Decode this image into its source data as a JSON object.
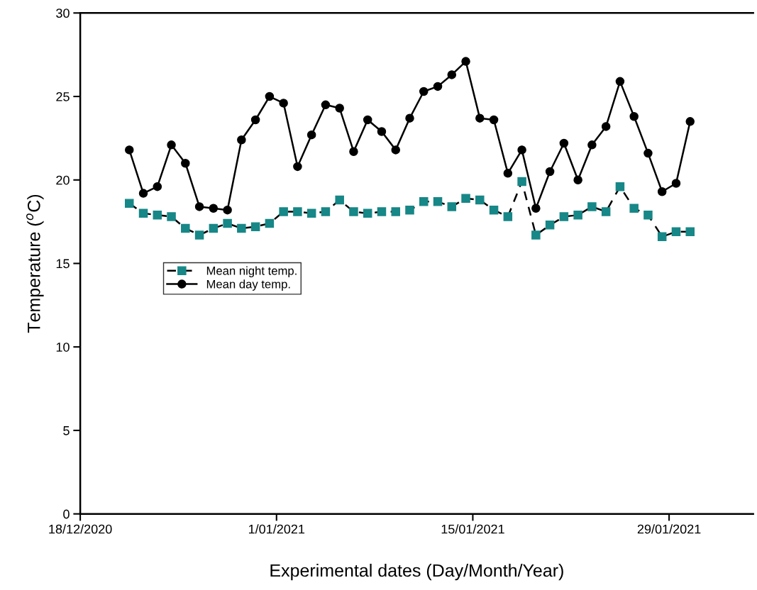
{
  "chart_data": {
    "type": "line",
    "xlabel": "Experimental dates (Day/Month/Year)",
    "ylabel": "Temperature ($^{o}$C)",
    "x": [
      "2020-12-21T12:00",
      "2020-12-22T12:00",
      "2020-12-23T12:00",
      "2020-12-24T12:00",
      "2020-12-25T12:00",
      "2020-12-26T12:00",
      "2020-12-27T12:00",
      "2020-12-28T12:00",
      "2020-12-29T12:00",
      "2020-12-30T12:00",
      "2020-12-31T12:00",
      "2021-01-01T12:00",
      "2021-01-02T12:00",
      "2021-01-03T12:00",
      "2021-01-04T12:00",
      "2021-01-05T12:00",
      "2021-01-06T12:00",
      "2021-01-07T12:00",
      "2021-01-08T12:00",
      "2021-01-09T12:00",
      "2021-01-10T12:00",
      "2021-01-11T12:00",
      "2021-01-12T12:00",
      "2021-01-13T12:00",
      "2021-01-14T12:00",
      "2021-01-15T12:00",
      "2021-01-16T12:00",
      "2021-01-17T12:00",
      "2021-01-18T12:00",
      "2021-01-19T12:00",
      "2021-01-20T12:00",
      "2021-01-21T12:00",
      "2021-01-22T12:00",
      "2021-01-23T12:00",
      "2021-01-24T12:00",
      "2021-01-25T12:00",
      "2021-01-26T12:00",
      "2021-01-27T12:00",
      "2021-01-28T12:00",
      "2021-01-29T12:00",
      "2021-01-30T12:00"
    ],
    "series": [
      {
        "name": "Mean night temp.",
        "color": "#178787",
        "marker": "square",
        "line_style": "dashed",
        "values": [
          18.6,
          18.0,
          17.9,
          17.8,
          17.1,
          16.7,
          17.1,
          17.4,
          17.1,
          17.2,
          17.4,
          18.1,
          18.1,
          18.0,
          18.1,
          18.8,
          18.1,
          18.0,
          18.1,
          18.1,
          18.2,
          18.7,
          18.7,
          18.4,
          18.9,
          18.8,
          18.2,
          17.8,
          19.9,
          16.7,
          17.3,
          17.8,
          17.9,
          18.4,
          18.1,
          19.6,
          18.3,
          17.9,
          16.6,
          16.9,
          16.9
        ]
      },
      {
        "name": "Mean day temp.",
        "color": "#000000",
        "marker": "circle",
        "line_style": "solid",
        "values": [
          21.8,
          19.2,
          19.6,
          22.1,
          21.0,
          18.4,
          18.3,
          18.2,
          22.4,
          23.6,
          25.0,
          24.6,
          20.8,
          22.7,
          24.5,
          24.3,
          21.7,
          23.6,
          22.9,
          21.8,
          23.7,
          25.3,
          25.6,
          26.3,
          27.1,
          23.7,
          23.6,
          20.4,
          21.8,
          18.3,
          20.5,
          22.2,
          20.0,
          22.1,
          23.2,
          25.9,
          23.8,
          21.6,
          19.3,
          19.8,
          23.5
        ]
      }
    ],
    "xlim": [
      "2020-12-18",
      "2021-02-04"
    ],
    "xticks": [
      {
        "value": "2020-12-18",
        "label": "18/12/2020"
      },
      {
        "value": "2021-01-01",
        "label": "1/01/2021"
      },
      {
        "value": "2021-01-15",
        "label": "15/01/2021"
      },
      {
        "value": "2021-01-29",
        "label": "29/01/2021"
      }
    ],
    "ylim": [
      0,
      30
    ],
    "yticks": [
      0,
      5,
      10,
      15,
      20,
      25,
      30
    ],
    "grid": false,
    "legend": "center left"
  }
}
